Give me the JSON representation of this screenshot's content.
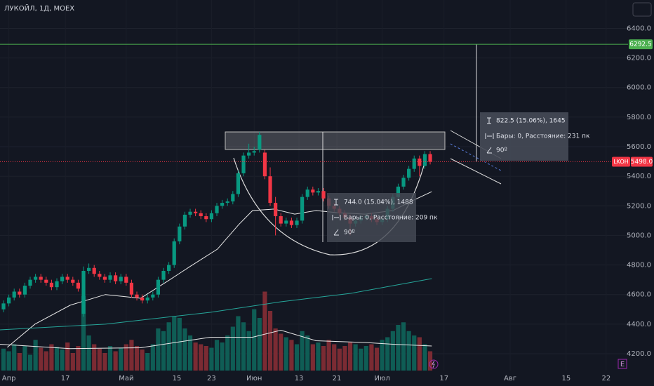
{
  "chart_data": {
    "type": "candlestick",
    "title": "ЛУКОЙЛ, 1Д, MOEX",
    "xlim": [
      -0.66,
      117.1
    ],
    "ylim": [
      4086,
      6592
    ],
    "yticks": [
      {
        "value": 4200,
        "label": "4200.0"
      },
      {
        "value": 4400,
        "label": "4400.0"
      },
      {
        "value": 4600,
        "label": "4600.0"
      },
      {
        "value": 4800,
        "label": "4800.0"
      },
      {
        "value": 5000,
        "label": "5000.0"
      },
      {
        "value": 5200,
        "label": "5200.0"
      },
      {
        "value": 5400,
        "label": "5400.0"
      },
      {
        "value": 5600,
        "label": "5600.0"
      },
      {
        "value": 5800,
        "label": "5800.0"
      },
      {
        "value": 6000,
        "label": "6000.0"
      },
      {
        "value": 6200,
        "label": "6200.0"
      },
      {
        "value": 6400,
        "label": "6400.0"
      }
    ],
    "xticks": [
      {
        "value": 1,
        "label": "Апр"
      },
      {
        "value": 11.6,
        "label": "17"
      },
      {
        "value": 23,
        "label": "Май"
      },
      {
        "value": 32.5,
        "label": "15"
      },
      {
        "value": 39,
        "label": "23"
      },
      {
        "value": 47,
        "label": "Июн"
      },
      {
        "value": 55.4,
        "label": "13"
      },
      {
        "value": 62.5,
        "label": "21"
      },
      {
        "value": 71,
        "label": "Июл"
      },
      {
        "value": 82.6,
        "label": "17"
      },
      {
        "value": 95,
        "label": "Авг"
      },
      {
        "value": 105.5,
        "label": "15"
      },
      {
        "value": 113,
        "label": "22"
      }
    ],
    "up_color": "#089981",
    "down_color": "#f23645",
    "volume_up_color": "#0f5d55",
    "volume_down_color": "#7b2b33",
    "open": [
      4500,
      4540,
      4580,
      4620,
      4600,
      4660,
      4700,
      4720,
      4700,
      4680,
      4650,
      4690,
      4720,
      4700,
      4680,
      4470,
      4760,
      4780,
      4740,
      4720,
      4700,
      4730,
      4690,
      4720,
      4680,
      4600,
      4580,
      4560,
      4580,
      4600,
      4700,
      4760,
      4800,
      4960,
      5060,
      5140,
      5160,
      5150,
      5130,
      5110,
      5150,
      5200,
      5220,
      5230,
      5280,
      5420,
      5540,
      5560,
      5580,
      5560,
      5400,
      5220,
      5130,
      5080,
      5100,
      5070,
      5100,
      5260,
      5310,
      5290,
      5300,
      5250,
      5200,
      5180,
      5150,
      5120,
      5080,
      5100,
      5120,
      5130,
      5110,
      5090,
      5110,
      5180,
      5260,
      5330,
      5390,
      5450,
      5520,
      5470,
      5550
    ],
    "high": [
      4560,
      4600,
      4640,
      4640,
      4680,
      4720,
      4740,
      4740,
      4720,
      4700,
      4710,
      4740,
      4740,
      4720,
      4700,
      4790,
      4810,
      4800,
      4760,
      4740,
      4750,
      4750,
      4740,
      4740,
      4700,
      4620,
      4600,
      4600,
      4620,
      4720,
      4780,
      4820,
      4980,
      5080,
      5160,
      5180,
      5180,
      5170,
      5150,
      5170,
      5220,
      5240,
      5250,
      5300,
      5440,
      5560,
      5620,
      5600,
      5700,
      5580,
      5460,
      5260,
      5150,
      5120,
      5120,
      5120,
      5280,
      5330,
      5330,
      5320,
      5320,
      5270,
      5220,
      5200,
      5170,
      5140,
      5120,
      5140,
      5150,
      5150,
      5130,
      5130,
      5200,
      5280,
      5350,
      5410,
      5470,
      5540,
      5540,
      5570,
      5570
    ],
    "low": [
      4480,
      4520,
      4560,
      4580,
      4580,
      4640,
      4680,
      4680,
      4660,
      4630,
      4630,
      4670,
      4680,
      4660,
      4620,
      4450,
      4740,
      4720,
      4700,
      4680,
      4680,
      4670,
      4670,
      4660,
      4580,
      4560,
      4540,
      4540,
      4560,
      4580,
      4680,
      4740,
      4780,
      4940,
      5040,
      5120,
      5130,
      5110,
      5090,
      5090,
      5130,
      5180,
      5200,
      5210,
      5260,
      5400,
      5520,
      5540,
      5560,
      5380,
      5200,
      5000,
      5060,
      5060,
      5050,
      5050,
      5080,
      5240,
      5270,
      5270,
      5230,
      5180,
      5160,
      5130,
      5100,
      5000,
      5060,
      5080,
      5100,
      5090,
      5070,
      5070,
      5090,
      5160,
      5240,
      5310,
      5370,
      5430,
      5400,
      5450,
      5480
    ],
    "close": [
      4540,
      4580,
      4620,
      4600,
      4660,
      4700,
      4720,
      4700,
      4680,
      4650,
      4690,
      4720,
      4700,
      4680,
      4640,
      4760,
      4780,
      4740,
      4720,
      4700,
      4730,
      4690,
      4720,
      4680,
      4600,
      4580,
      4560,
      4580,
      4600,
      4700,
      4760,
      4800,
      4960,
      5060,
      5140,
      5160,
      5150,
      5130,
      5110,
      5150,
      5200,
      5220,
      5230,
      5280,
      5420,
      5540,
      5560,
      5570,
      5680,
      5400,
      5220,
      5130,
      5080,
      5100,
      5070,
      5100,
      5260,
      5310,
      5290,
      5300,
      5250,
      5200,
      5180,
      5150,
      5120,
      5080,
      5100,
      5120,
      5130,
      5110,
      5090,
      5110,
      5180,
      5260,
      5330,
      5390,
      5450,
      5520,
      5470,
      5550,
      5498
    ],
    "volume": [
      25,
      22,
      30,
      20,
      28,
      18,
      35,
      26,
      22,
      30,
      27,
      24,
      32,
      20,
      28,
      85,
      40,
      30,
      25,
      20,
      28,
      22,
      26,
      30,
      35,
      28,
      24,
      20,
      30,
      48,
      45,
      55,
      62,
      60,
      48,
      40,
      32,
      30,
      28,
      26,
      35,
      32,
      40,
      50,
      62,
      55,
      45,
      70,
      60,
      90,
      68,
      48,
      42,
      38,
      35,
      30,
      45,
      40,
      30,
      32,
      28,
      35,
      30,
      25,
      28,
      32,
      30,
      25,
      28,
      30,
      26,
      35,
      38,
      45,
      52,
      55,
      45,
      40,
      38,
      30,
      22
    ],
    "volume_lim": [
      0,
      104
    ],
    "lines": [
      {
        "color": "#e8e8e8",
        "x": [
          0.7,
          5.9,
          12.5,
          19.1,
          25.7,
          30.9,
          34.9,
          40.1,
          44.1,
          46.7,
          50.7,
          54.6,
          58.6,
          62.5,
          67.8,
          73,
          77,
          80.3
        ],
        "values": [
          4243,
          4400,
          4528,
          4600,
          4575,
          4694,
          4788,
          4907,
          5073,
          5168,
          5178,
          5144,
          5168,
          5154,
          5144,
          5168,
          5240,
          5296
        ]
      },
      {
        "color": "#26a69a",
        "x": [
          -0.66,
          19.1,
          38.8,
          52,
          65.1,
          80.3
        ],
        "values": [
          4361,
          4400,
          4480,
          4551,
          4608,
          4708
        ]
      }
    ],
    "volume_lines": [
      {
        "color": "#e8e8e8",
        "x": [
          -0.66,
          12.5,
          25.7,
          38.8,
          46.7,
          52,
          58.6,
          67.8,
          73,
          80.3
        ],
        "values": [
          30,
          25,
          26,
          38,
          38,
          46,
          34,
          32,
          30,
          28
        ]
      }
    ],
    "price_lines": [
      {
        "value": 6292.5,
        "label": "6292.5",
        "color": "#4caf50"
      }
    ],
    "last_price": {
      "name": "LKOH",
      "value": 5498,
      "label": "5498.0",
      "color": "#f23645"
    },
    "measures": [
      {
        "lines": [
          "744.0 (15.04%), 1488",
          "Бары: 0, Расстояние: 209 пк",
          "90º"
        ]
      },
      {
        "lines": [
          "822.5 (15.06%), 1645",
          "Бары: 0, Расстояние: 231 пк",
          "90º"
        ]
      }
    ]
  }
}
